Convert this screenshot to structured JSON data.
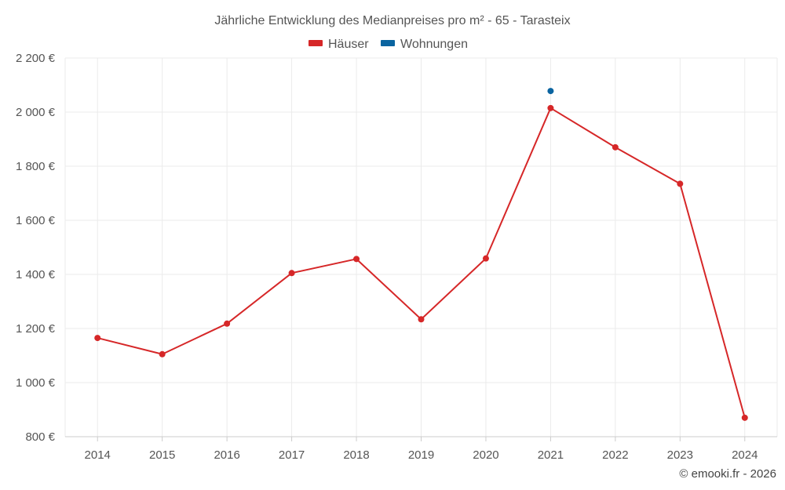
{
  "chart_data": {
    "type": "line",
    "title": "Jährliche Entwicklung des Medianpreises pro m² - 65 - Tarasteix",
    "categories": [
      "2014",
      "2015",
      "2016",
      "2017",
      "2018",
      "2019",
      "2020",
      "2021",
      "2022",
      "2023",
      "2024"
    ],
    "series": [
      {
        "name": "Häuser",
        "color": "#d62728",
        "values": [
          1165,
          1105,
          1218,
          1405,
          1457,
          1234,
          1459,
          2015,
          1870,
          1735,
          870
        ]
      },
      {
        "name": "Wohnungen",
        "color": "#0a64a0",
        "values": [
          null,
          null,
          null,
          null,
          null,
          null,
          null,
          2078,
          null,
          null,
          null
        ]
      }
    ],
    "ylim": [
      800,
      2200
    ],
    "yticks": [
      800,
      1000,
      1200,
      1400,
      1600,
      1800,
      2000,
      2200
    ],
    "ytick_labels": [
      "800 €",
      "1 000 €",
      "1 200 €",
      "1 400 €",
      "1 600 €",
      "1 800 €",
      "2 000 €",
      "2 200 €"
    ],
    "grid": true,
    "legend_position": "top-center",
    "xlabel": "",
    "ylabel": ""
  },
  "footer": {
    "credit": "© emooki.fr - 2026"
  }
}
